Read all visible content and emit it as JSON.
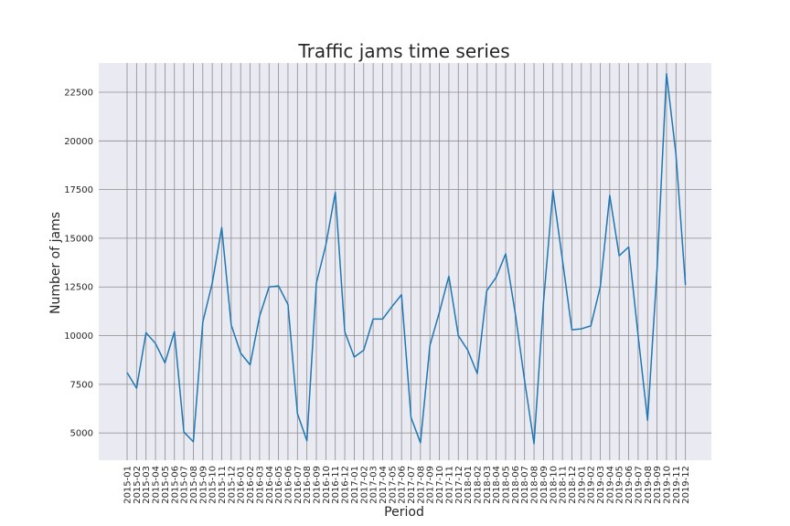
{
  "chart_data": {
    "type": "line",
    "title": "Traffic jams time series",
    "xlabel": "Period",
    "ylabel": "Number of jams",
    "grid": true,
    "ylim": [
      3600,
      24000
    ],
    "yticks": [
      5000,
      7500,
      10000,
      12500,
      15000,
      17500,
      20000,
      22500
    ],
    "line_color": "#1f77b4",
    "background_color": "#eaeaf2",
    "grid_color": "#8c8c8c",
    "categories": [
      "2015-01",
      "2015-02",
      "2015-03",
      "2015-04",
      "2015-05",
      "2015-06",
      "2015-07",
      "2015-08",
      "2015-09",
      "2015-10",
      "2015-11",
      "2015-12",
      "2016-01",
      "2016-02",
      "2016-03",
      "2016-04",
      "2016-05",
      "2016-06",
      "2016-07",
      "2016-08",
      "2016-09",
      "2016-10",
      "2016-11",
      "2016-12",
      "2017-01",
      "2017-02",
      "2017-03",
      "2017-04",
      "2017-05",
      "2017-06",
      "2017-07",
      "2017-08",
      "2017-09",
      "2017-10",
      "2017-11",
      "2017-12",
      "2018-01",
      "2018-02",
      "2018-03",
      "2018-04",
      "2018-05",
      "2018-06",
      "2018-07",
      "2018-08",
      "2018-09",
      "2018-10",
      "2018-11",
      "2018-12",
      "2019-01",
      "2019-02",
      "2019-03",
      "2019-04",
      "2019-05",
      "2019-06",
      "2019-07",
      "2019-08",
      "2019-09",
      "2019-10",
      "2019-11",
      "2019-12"
    ],
    "values": [
      8100,
      7300,
      10150,
      9600,
      8600,
      10200,
      5050,
      4550,
      10700,
      12700,
      15550,
      10550,
      9100,
      8500,
      11000,
      12500,
      12550,
      11600,
      6000,
      4600,
      12700,
      14650,
      17350,
      10200,
      8900,
      9250,
      10850,
      10850,
      11500,
      12100,
      5800,
      4500,
      9500,
      11200,
      13050,
      10000,
      9250,
      8050,
      12300,
      13000,
      14200,
      11200,
      7700,
      4450,
      11700,
      17450,
      13900,
      10300,
      10350,
      10500,
      12500,
      17200,
      14100,
      14550,
      10000,
      5650,
      13400,
      23450,
      19300,
      12600
    ]
  }
}
